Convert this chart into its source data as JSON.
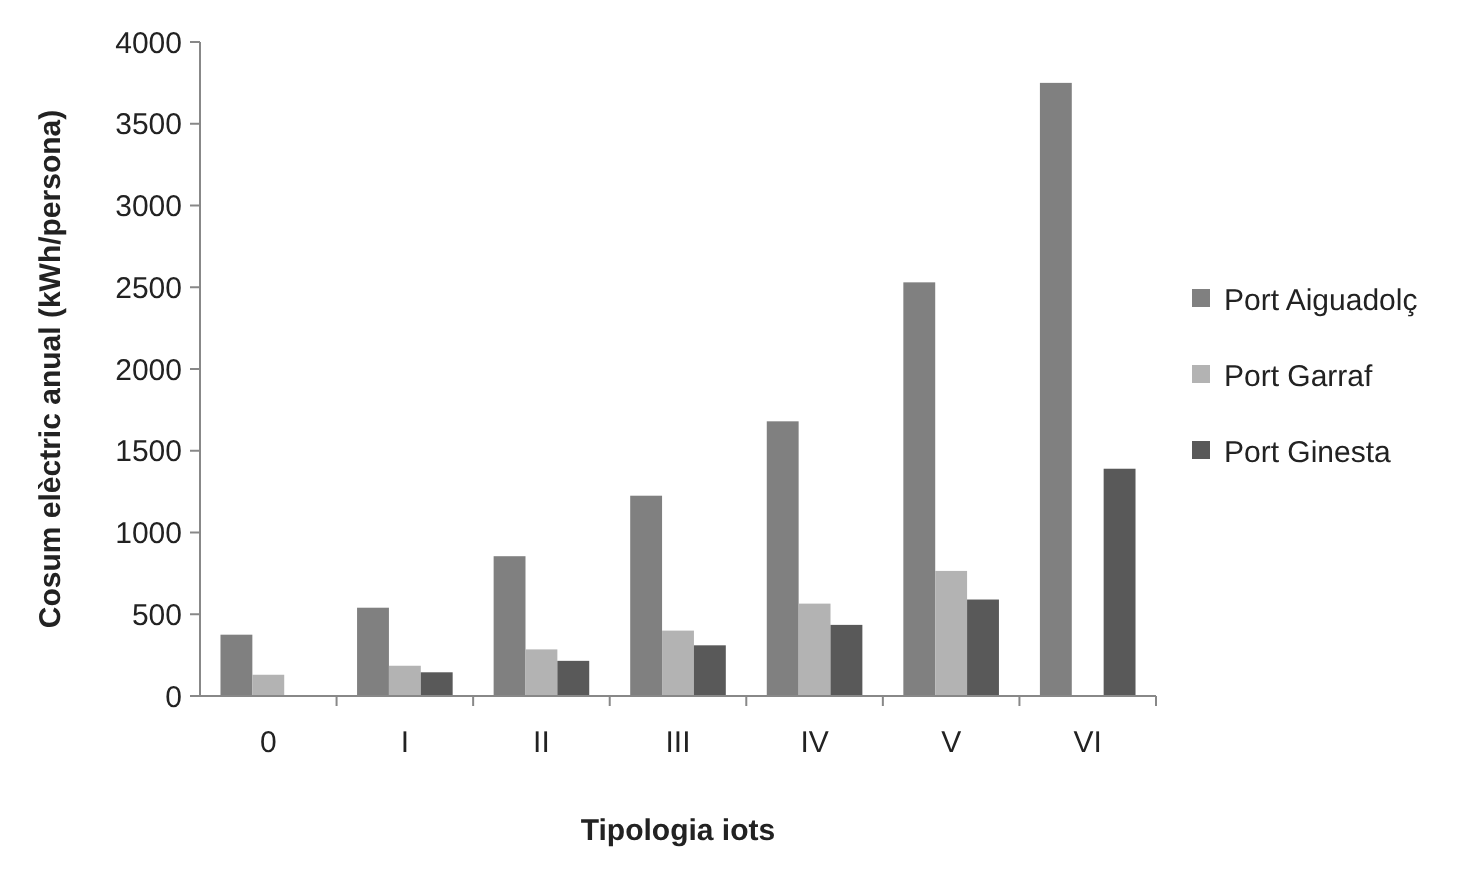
{
  "chart_data": {
    "type": "bar",
    "xlabel": "Tipologia iots",
    "ylabel": "Cosum elèctric anual (kWh/persona)",
    "categories": [
      "0",
      "I",
      "II",
      "III",
      "IV",
      "V",
      "VI"
    ],
    "series": [
      {
        "name": "Port Aiguadolç",
        "color": "#808080",
        "values": [
          375,
          540,
          855,
          1225,
          1680,
          2530,
          3750
        ]
      },
      {
        "name": "Port Garraf",
        "color": "#b3b3b3",
        "values": [
          130,
          185,
          285,
          400,
          565,
          765,
          null
        ]
      },
      {
        "name": "Port Ginesta",
        "color": "#595959",
        "values": [
          null,
          145,
          215,
          310,
          435,
          590,
          1390
        ]
      }
    ],
    "ylim": [
      0,
      4000
    ],
    "yticks": [
      0,
      500,
      1000,
      1500,
      2000,
      2500,
      3000,
      3500,
      4000
    ],
    "grid": false,
    "legend": "right"
  }
}
